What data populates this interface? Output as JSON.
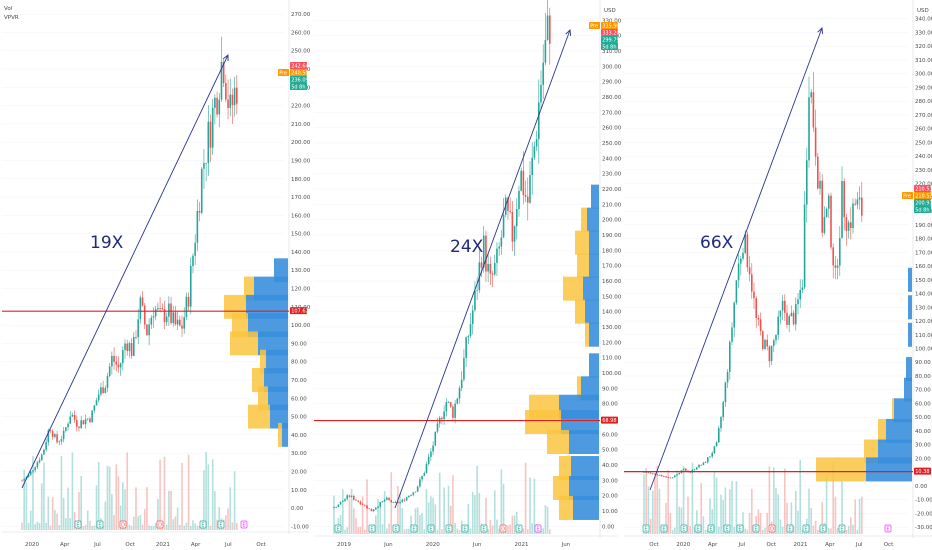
{
  "indicators": {
    "vol": "Vol",
    "vpvr": "VPVR"
  },
  "chart_data": [
    {
      "type": "candlestick",
      "currency": "",
      "annotation": "19X",
      "y_min": -12,
      "y_max": 275,
      "y_ticks": [
        "270.00",
        "260.00",
        "250.00",
        "240.00",
        "230.00",
        "220.00",
        "210.00",
        "200.00",
        "190.00",
        "180.00",
        "170.00",
        "160.00",
        "150.00",
        "140.00",
        "130.00",
        "120.00",
        "110.00",
        "100.00",
        "90.00",
        "80.00",
        "70.00",
        "60.00",
        "50.00",
        "40.00",
        "30.00",
        "20.00",
        "10.00",
        "0.00",
        "-10.00"
      ],
      "x_ticks": [
        "2020",
        "Apr",
        "Jul",
        "Oct",
        "2021",
        "Apr",
        "Jul",
        "Oct"
      ],
      "price_path": [
        15,
        18,
        24,
        30,
        45,
        36,
        40,
        52,
        46,
        48,
        50,
        62,
        68,
        82,
        76,
        92,
        85,
        112,
        96,
        110,
        104,
        108,
        100,
        98,
        115,
        150,
        185,
        205,
        225,
        248,
        215,
        232
      ],
      "support_line": 107.62,
      "labels": [
        {
          "text": "242.64",
          "color": "#f7525f"
        },
        {
          "text": "Pre",
          "color": "#ff9800"
        },
        {
          "text": "240.50",
          "color": "#ff9800"
        },
        {
          "text": "236.09",
          "color": "#22ab94"
        },
        {
          "text": "5d 8h",
          "color": "#22ab94"
        },
        {
          "text": "107.62",
          "color": "#e02020"
        }
      ],
      "events": [
        "E",
        "E",
        "D",
        "D",
        "E",
        "E",
        "E"
      ],
      "volume_profile": [
        {
          "price": 130,
          "orange": 0,
          "blue": 14
        },
        {
          "price": 120,
          "orange": 10,
          "blue": 34
        },
        {
          "price": 110,
          "orange": 22,
          "blue": 42
        },
        {
          "price": 100,
          "orange": 16,
          "blue": 40
        },
        {
          "price": 90,
          "orange": 28,
          "blue": 30
        },
        {
          "price": 80,
          "orange": 6,
          "blue": 22
        },
        {
          "price": 70,
          "orange": 12,
          "blue": 24
        },
        {
          "price": 60,
          "orange": 10,
          "blue": 20
        },
        {
          "price": 50,
          "orange": 22,
          "blue": 18
        },
        {
          "price": 40,
          "orange": 4,
          "blue": 6
        }
      ]
    },
    {
      "type": "candlestick",
      "currency": "USD",
      "annotation": "24X",
      "y_min": -5,
      "y_max": 340,
      "y_ticks": [
        "330.00",
        "320.00",
        "310.00",
        "300.00",
        "290.00",
        "280.00",
        "270.00",
        "260.00",
        "250.00",
        "240.00",
        "230.00",
        "220.00",
        "210.00",
        "200.00",
        "190.00",
        "180.00",
        "170.00",
        "160.00",
        "150.00",
        "140.00",
        "130.00",
        "120.00",
        "110.00",
        "100.00",
        "90.00",
        "80.00",
        "70.00",
        "60.00",
        "50.00",
        "40.00",
        "30.00",
        "20.00",
        "10.00",
        "0.00"
      ],
      "x_ticks": [
        "2019",
        "Jun",
        "2020",
        "Jun",
        "2021",
        "Jun"
      ],
      "price_path": [
        12,
        16,
        20,
        17,
        14,
        10,
        14,
        18,
        15,
        16,
        20,
        24,
        34,
        48,
        65,
        82,
        74,
        94,
        124,
        150,
        185,
        158,
        174,
        204,
        190,
        232,
        210,
        250,
        300,
        329
      ],
      "support_line": 68.98,
      "labels": [
        {
          "text": "Pre",
          "color": "#ff9800"
        },
        {
          "text": "335.90",
          "color": "#ff9800"
        },
        {
          "text": "333.20",
          "color": "#f7525f"
        },
        {
          "text": "299.79",
          "color": "#22ab94"
        },
        {
          "text": "5d 8h",
          "color": "#22ab94"
        },
        {
          "text": "68.98",
          "color": "#e02020"
        }
      ],
      "events": [
        "E",
        "E",
        "E",
        "E",
        "E",
        "E",
        "E",
        "E",
        "D",
        "E",
        "E"
      ],
      "volume_profile": [
        {
          "price": 215,
          "orange": 0,
          "blue": 8
        },
        {
          "price": 200,
          "orange": 6,
          "blue": 12
        },
        {
          "price": 185,
          "orange": 14,
          "blue": 10
        },
        {
          "price": 170,
          "orange": 12,
          "blue": 10
        },
        {
          "price": 155,
          "orange": 20,
          "blue": 16
        },
        {
          "price": 140,
          "orange": 10,
          "blue": 14
        },
        {
          "price": 125,
          "orange": 4,
          "blue": 10
        },
        {
          "price": 105,
          "orange": 0,
          "blue": 10
        },
        {
          "price": 90,
          "orange": 4,
          "blue": 18
        },
        {
          "price": 78,
          "orange": 30,
          "blue": 40
        },
        {
          "price": 68,
          "orange": 36,
          "blue": 38
        },
        {
          "price": 55,
          "orange": 22,
          "blue": 30
        },
        {
          "price": 38,
          "orange": 12,
          "blue": 28
        },
        {
          "price": 25,
          "orange": 16,
          "blue": 30
        },
        {
          "price": 12,
          "orange": 14,
          "blue": 26
        }
      ]
    },
    {
      "type": "candlestick",
      "currency": "USD",
      "annotation": "66X",
      "y_min": -35,
      "y_max": 350,
      "y_ticks": [
        "340.00",
        "330.00",
        "320.00",
        "310.00",
        "300.00",
        "290.00",
        "280.00",
        "270.00",
        "260.00",
        "250.00",
        "240.00",
        "230.00",
        "220.00",
        "210.00",
        "200.00",
        "190.00",
        "180.00",
        "170.00",
        "160.00",
        "150.00",
        "140.00",
        "130.00",
        "120.00",
        "110.00",
        "100.00",
        "90.00",
        "80.00",
        "70.00",
        "60.00",
        "50.00",
        "40.00",
        "30.00",
        "20.00",
        "10.00",
        "0.00",
        "-10.00",
        "-20.00",
        "-30.00"
      ],
      "x_ticks": [
        "Oct",
        "2020",
        "Apr",
        "Jul",
        "Oct",
        "2021",
        "Apr",
        "Jul",
        "Oct"
      ],
      "price_path": [
        10,
        9,
        8,
        7,
        6,
        8,
        12,
        10,
        14,
        16,
        22,
        30,
        60,
        100,
        150,
        180,
        160,
        120,
        105,
        95,
        110,
        130,
        120,
        125,
        150,
        300,
        250,
        190,
        200,
        150,
        210,
        190,
        205,
        200
      ],
      "support_line": 10.38,
      "labels": [
        {
          "text": "210.51",
          "color": "#f7525f"
        },
        {
          "text": "Pre",
          "color": "#ff9800"
        },
        {
          "text": "210.52",
          "color": "#ff9800"
        },
        {
          "text": "200.97",
          "color": "#22ab94"
        },
        {
          "text": "5d 8h",
          "color": "#22ab94"
        },
        {
          "text": "10.38",
          "color": "#e02020"
        }
      ],
      "events": [
        "E",
        "E",
        "E",
        "E",
        "E",
        "E",
        "E",
        "E",
        "D",
        "E",
        "E",
        "E",
        "E",
        "E"
      ],
      "volume_profile": [
        {
          "price": 150,
          "orange": 0,
          "blue": 4
        },
        {
          "price": 130,
          "orange": 0,
          "blue": 4
        },
        {
          "price": 110,
          "orange": 0,
          "blue": 4
        },
        {
          "price": 85,
          "orange": 0,
          "blue": 6
        },
        {
          "price": 70,
          "orange": 0,
          "blue": 8
        },
        {
          "price": 55,
          "orange": 2,
          "blue": 18
        },
        {
          "price": 40,
          "orange": 8,
          "blue": 26
        },
        {
          "price": 25,
          "orange": 14,
          "blue": 34
        },
        {
          "price": 12,
          "orange": 50,
          "blue": 46
        }
      ]
    }
  ]
}
